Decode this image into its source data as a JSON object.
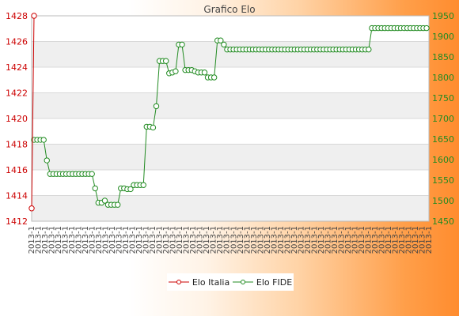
{
  "chart_data": {
    "type": "line",
    "title": "Grafico Elo",
    "grid": true,
    "legend_position": "bottom-center",
    "left_axis": {
      "ylim": [
        1412,
        1428
      ],
      "ticks": [
        1412,
        1414,
        1416,
        1418,
        1420,
        1422,
        1424,
        1426,
        1428
      ],
      "color": "#cc0000"
    },
    "right_axis": {
      "ylim": [
        1450,
        1950
      ],
      "ticks": [
        1450,
        1500,
        1550,
        1600,
        1650,
        1700,
        1750,
        1800,
        1850,
        1900,
        1950
      ],
      "color": "#228B22"
    },
    "x_tick_label_sample": "2013-1",
    "x_tick_count": 60,
    "series": [
      {
        "name": "Elo Italia",
        "axis": "left",
        "color": "#cc0000",
        "points": [
          {
            "x": 0,
            "y": 1413
          },
          {
            "x": 1,
            "y": 1428
          }
        ]
      },
      {
        "name": "Elo FIDE",
        "axis": "right",
        "color": "#228B22",
        "values": [
          1648,
          1648,
          1648,
          1648,
          1598,
          1565,
          1565,
          1565,
          1565,
          1565,
          1565,
          1565,
          1565,
          1565,
          1565,
          1565,
          1565,
          1565,
          1565,
          1530,
          1495,
          1495,
          1500,
          1490,
          1490,
          1490,
          1490,
          1530,
          1530,
          1528,
          1528,
          1538,
          1538,
          1538,
          1538,
          1680,
          1680,
          1678,
          1730,
          1840,
          1840,
          1840,
          1810,
          1812,
          1815,
          1880,
          1880,
          1818,
          1818,
          1818,
          1815,
          1812,
          1812,
          1812,
          1800,
          1800,
          1800,
          1890,
          1890,
          1880,
          1868,
          1868,
          1868,
          1868,
          1868,
          1868,
          1868,
          1868,
          1868,
          1868,
          1868,
          1868,
          1868,
          1868,
          1868,
          1868,
          1868,
          1868,
          1868,
          1868,
          1868,
          1868,
          1868,
          1868,
          1868,
          1868,
          1868,
          1868,
          1868,
          1868,
          1868,
          1868,
          1868,
          1868,
          1868,
          1868,
          1868,
          1868,
          1868,
          1868,
          1868,
          1868,
          1868,
          1868,
          1868,
          1920,
          1920,
          1920,
          1920,
          1920,
          1920,
          1920,
          1920,
          1920,
          1920,
          1920,
          1920,
          1920,
          1920,
          1920,
          1920,
          1920,
          1920
        ]
      }
    ]
  }
}
